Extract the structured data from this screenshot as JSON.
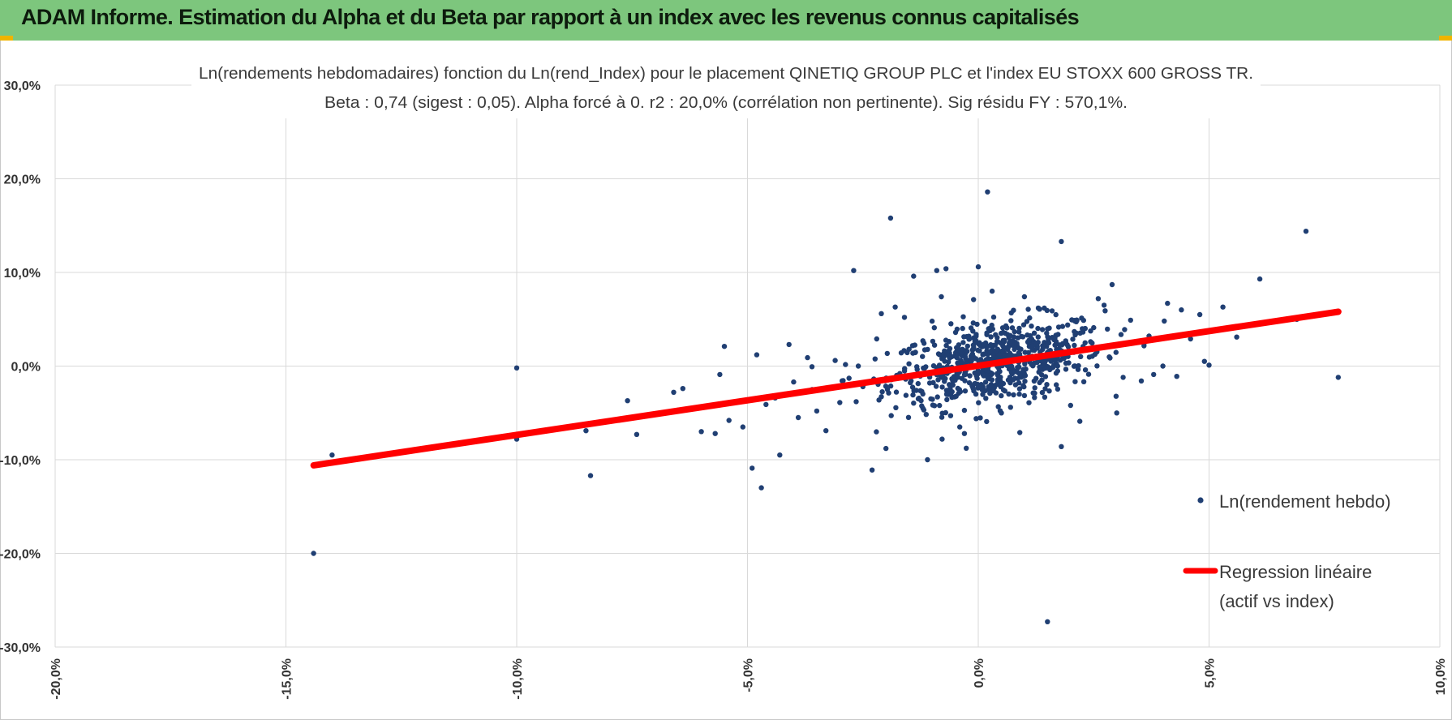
{
  "banner": {
    "title": "ADAM Informe. Estimation du Alpha et du Beta par rapport à un index avec les revenus connus capitalisés",
    "color": "#7dc67d",
    "corner_color": "#f0b400"
  },
  "chart_data": {
    "type": "scatter",
    "title": "Ln(rendements hebdomadaires) fonction du Ln(rend_Index) pour le placement QINETIQ GROUP PLC et l'index EU STOXX 600 GROSS TR.",
    "subtitle": "Beta : 0,74 (sigest : 0,05).  Alpha forcé à 0. r2 : 20,0% (corrélation non pertinente). Sig résidu FY : 570,1%.",
    "xlabel": "",
    "ylabel": "",
    "xlim": [
      -20,
      10
    ],
    "ylim": [
      -30,
      30
    ],
    "x_ticks": [
      -20,
      -15,
      -10,
      -5,
      0,
      5,
      10
    ],
    "y_ticks": [
      -30,
      -20,
      -10,
      0,
      10,
      20,
      30
    ],
    "x_tick_labels": [
      "-20,0%",
      "-15,0%",
      "-10,0%",
      "-5,0%",
      "0,0%",
      "5,0%",
      "10,0%"
    ],
    "y_tick_labels": [
      "-30,0%",
      "-20,0%",
      "-10,0%",
      "0,0%",
      "10,0%",
      "20,0%",
      "30,0%"
    ],
    "grid": true,
    "legend_position": "right",
    "series": [
      {
        "name": "Ln(rendement hebdo)",
        "kind": "points",
        "color": "#203f73",
        "points": [
          [
            -14.4,
            -20.0
          ],
          [
            -14.0,
            -9.5
          ],
          [
            -10.0,
            -0.2
          ],
          [
            -10.0,
            -7.8
          ],
          [
            -8.5,
            -6.9
          ],
          [
            -8.4,
            -11.7
          ],
          [
            -7.6,
            -3.7
          ],
          [
            -7.4,
            -7.3
          ],
          [
            -6.6,
            -2.8
          ],
          [
            -6.5,
            -4.7
          ],
          [
            -6.4,
            -2.4
          ],
          [
            -6.0,
            -7.0
          ],
          [
            -5.7,
            -7.2
          ],
          [
            -5.6,
            -0.9
          ],
          [
            -5.5,
            2.1
          ],
          [
            -5.4,
            -5.8
          ],
          [
            -5.1,
            -6.5
          ],
          [
            -4.9,
            -10.9
          ],
          [
            -4.8,
            1.2
          ],
          [
            -4.7,
            -13.0
          ],
          [
            -4.6,
            -4.1
          ],
          [
            -4.4,
            -3.4
          ],
          [
            -4.3,
            -9.5
          ],
          [
            -4.1,
            2.3
          ],
          [
            -4.0,
            -1.7
          ],
          [
            -3.9,
            -5.5
          ],
          [
            -3.7,
            0.9
          ],
          [
            -3.6,
            -2.5
          ],
          [
            -3.3,
            -6.9
          ],
          [
            -3.1,
            0.6
          ],
          [
            -2.7,
            10.2
          ],
          [
            -2.5,
            -2.2
          ],
          [
            -2.3,
            -11.1
          ],
          [
            -2.2,
            2.9
          ],
          [
            -2.1,
            5.6
          ],
          [
            -2.0,
            -8.8
          ],
          [
            -1.9,
            15.8
          ],
          [
            -1.8,
            6.3
          ],
          [
            -1.7,
            -0.8
          ],
          [
            -1.6,
            5.2
          ],
          [
            -1.5,
            1.8
          ],
          [
            -1.4,
            9.6
          ],
          [
            -1.3,
            -3.5
          ],
          [
            -1.2,
            2.7
          ],
          [
            -1.0,
            4.8
          ],
          [
            -0.9,
            10.2
          ],
          [
            -0.8,
            7.4
          ],
          [
            -0.7,
            10.4
          ],
          [
            -0.5,
            -1.5
          ],
          [
            -0.3,
            -7.2
          ],
          [
            -0.1,
            3.0
          ],
          [
            0.0,
            10.6
          ],
          [
            0.2,
            18.6
          ],
          [
            0.5,
            -5.0
          ],
          [
            0.9,
            -7.1
          ],
          [
            1.5,
            -27.3
          ],
          [
            1.8,
            13.3
          ],
          [
            1.8,
            -8.6
          ],
          [
            2.2,
            -5.9
          ],
          [
            2.5,
            4.1
          ],
          [
            2.9,
            8.7
          ],
          [
            3.0,
            -5.0
          ],
          [
            3.3,
            4.9
          ],
          [
            3.6,
            2.5
          ],
          [
            3.8,
            -0.9
          ],
          [
            4.1,
            6.7
          ],
          [
            4.3,
            -1.1
          ],
          [
            4.4,
            6.0
          ],
          [
            4.8,
            5.5
          ],
          [
            4.9,
            0.5
          ],
          [
            5.3,
            6.3
          ],
          [
            5.6,
            3.1
          ],
          [
            6.1,
            9.3
          ],
          [
            7.1,
            14.4
          ],
          [
            7.8,
            -1.2
          ],
          [
            5.0,
            0.1
          ],
          [
            6.9,
            5.0
          ],
          [
            4.6,
            2.9
          ],
          [
            -0.6,
            -5.3
          ],
          [
            0.3,
            8.0
          ],
          [
            1.0,
            7.4
          ],
          [
            -1.2,
            -4.5
          ],
          [
            0.7,
            -4.4
          ],
          [
            1.3,
            6.2
          ],
          [
            -0.4,
            -6.5
          ],
          [
            2.0,
            -4.2
          ],
          [
            -2.8,
            -1.3
          ],
          [
            -3.0,
            -3.9
          ],
          [
            -3.5,
            -4.8
          ],
          [
            -2.6,
            0.0
          ],
          [
            -1.1,
            -10.0
          ],
          [
            2.6,
            7.2
          ],
          [
            1.6,
            5.9
          ],
          [
            -4.2,
            -3.0
          ],
          [
            3.7,
            3.2
          ],
          [
            4.0,
            0.0
          ]
        ],
        "cluster": {
          "n": 700,
          "x_mean": 0.4,
          "x_sd": 1.15,
          "y_mean": 0.4,
          "y_sd": 2.7,
          "beta": 0.74
        }
      },
      {
        "name": "Regression linéaire",
        "name_line2": "(actif vs index)",
        "kind": "line",
        "color": "#ff0000",
        "x": [
          -14.4,
          7.8
        ],
        "y": [
          -10.6,
          5.8
        ]
      }
    ]
  }
}
